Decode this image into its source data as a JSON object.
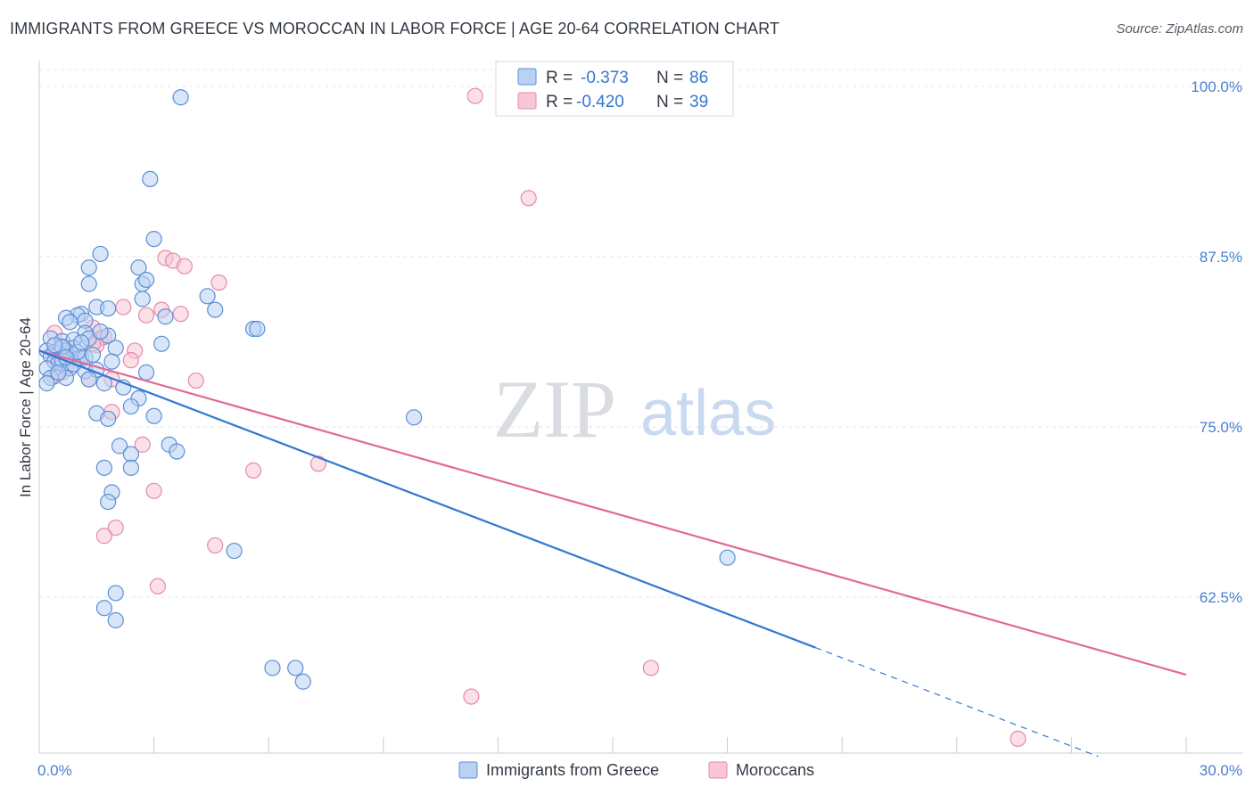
{
  "header": {
    "title": "IMMIGRANTS FROM GREECE VS MOROCCAN IN LABOR FORCE | AGE 20-64 CORRELATION CHART",
    "source": "Source: ZipAtlas.com"
  },
  "watermark": {
    "zip": "ZIP",
    "atlas": "atlas"
  },
  "colors": {
    "greece": "#5b8fd8",
    "greece_fill": "#b9d2f3",
    "greece_line": "#3477d1",
    "morocco": "#e58aa8",
    "morocco_fill": "#f8c6d6",
    "morocco_line": "#e06a95",
    "tick_blue": "#4a7fd0",
    "grid": "#e3e6ea"
  },
  "legend": {
    "rows": [
      {
        "r_label": "R =",
        "r_value": "-0.373",
        "n_label": "N =",
        "n_value": "86"
      },
      {
        "r_label": "R =",
        "r_value": "-0.420",
        "n_label": "N =",
        "n_value": "39"
      }
    ]
  },
  "chart_data": {
    "type": "scatter",
    "title": "IMMIGRANTS FROM GREECE VS MOROCCAN IN LABOR FORCE | AGE 20-64 CORRELATION CHART",
    "xlabel": "",
    "ylabel": "In Labor Force | Age 20-64",
    "xlim": [
      0,
      30
    ],
    "ylim": [
      50,
      102
    ],
    "x_tick_labels": [
      "0.0%",
      "30.0%"
    ],
    "y_ticks": [
      62.5,
      75.0,
      87.5,
      100.0
    ],
    "y_tick_labels": [
      "62.5%",
      "75.0%",
      "87.5%",
      "100.0%"
    ],
    "legend_labels": [
      "Immigrants from Greece",
      "Moroccans"
    ],
    "series": [
      {
        "name": "Immigrants from Greece",
        "r": -0.373,
        "n": 86,
        "trend": {
          "x0": 0,
          "y0": 80.6,
          "x1": 20.3,
          "y1": 58.8,
          "dash_x1": 27.7,
          "dash_y1": 50.8
        },
        "points": [
          [
            3.7,
            99.2
          ],
          [
            2.9,
            93.2
          ],
          [
            3.0,
            88.8
          ],
          [
            1.6,
            87.7
          ],
          [
            1.3,
            86.7
          ],
          [
            2.6,
            86.7
          ],
          [
            1.3,
            85.5
          ],
          [
            2.7,
            85.5
          ],
          [
            2.8,
            85.8
          ],
          [
            2.7,
            84.4
          ],
          [
            4.4,
            84.6
          ],
          [
            1.5,
            83.8
          ],
          [
            1.8,
            83.7
          ],
          [
            4.6,
            83.6
          ],
          [
            3.3,
            83.1
          ],
          [
            1.1,
            83.3
          ],
          [
            1.0,
            83.2
          ],
          [
            0.7,
            83.0
          ],
          [
            0.8,
            82.7
          ],
          [
            1.2,
            82.8
          ],
          [
            5.6,
            82.2
          ],
          [
            5.7,
            82.2
          ],
          [
            1.2,
            81.9
          ],
          [
            1.8,
            81.7
          ],
          [
            1.3,
            81.5
          ],
          [
            0.3,
            81.5
          ],
          [
            0.6,
            81.3
          ],
          [
            0.9,
            81.4
          ],
          [
            3.2,
            81.1
          ],
          [
            0.6,
            80.8
          ],
          [
            0.9,
            80.8
          ],
          [
            0.7,
            80.6
          ],
          [
            0.2,
            80.6
          ],
          [
            0.4,
            80.5
          ],
          [
            0.5,
            80.4
          ],
          [
            0.3,
            80.2
          ],
          [
            1.0,
            80.0
          ],
          [
            1.1,
            80.0
          ],
          [
            1.2,
            80.1
          ],
          [
            0.4,
            79.8
          ],
          [
            0.5,
            79.7
          ],
          [
            0.6,
            79.9
          ],
          [
            0.2,
            79.3
          ],
          [
            0.8,
            79.3
          ],
          [
            1.2,
            79.1
          ],
          [
            1.5,
            79.2
          ],
          [
            2.8,
            79.0
          ],
          [
            0.3,
            78.6
          ],
          [
            0.7,
            78.6
          ],
          [
            1.3,
            78.5
          ],
          [
            0.2,
            78.2
          ],
          [
            1.7,
            78.2
          ],
          [
            2.2,
            77.9
          ],
          [
            2.6,
            77.1
          ],
          [
            2.4,
            76.5
          ],
          [
            1.5,
            76.0
          ],
          [
            3.0,
            75.8
          ],
          [
            1.8,
            75.6
          ],
          [
            9.8,
            75.7
          ],
          [
            2.1,
            73.6
          ],
          [
            3.4,
            73.7
          ],
          [
            3.6,
            73.2
          ],
          [
            2.4,
            73.0
          ],
          [
            1.7,
            72.0
          ],
          [
            2.4,
            72.0
          ],
          [
            1.9,
            70.2
          ],
          [
            1.8,
            69.5
          ],
          [
            5.1,
            65.9
          ],
          [
            18.0,
            65.4
          ],
          [
            2.0,
            62.8
          ],
          [
            1.7,
            61.7
          ],
          [
            2.0,
            60.8
          ],
          [
            6.1,
            57.3
          ],
          [
            6.7,
            57.3
          ],
          [
            6.9,
            56.3
          ],
          [
            0.6,
            80.9
          ],
          [
            1.4,
            80.3
          ],
          [
            0.9,
            79.6
          ],
          [
            2.0,
            80.8
          ],
          [
            0.4,
            81.0
          ],
          [
            1.0,
            80.5
          ],
          [
            1.6,
            82.0
          ],
          [
            0.5,
            79.0
          ],
          [
            1.1,
            81.2
          ],
          [
            0.7,
            80.1
          ],
          [
            1.9,
            79.8
          ]
        ]
      },
      {
        "name": "Moroccans",
        "r": -0.42,
        "n": 39,
        "trend": {
          "x0": 0,
          "y0": 80.6,
          "x1": 30.0,
          "y1": 56.8
        },
        "points": [
          [
            11.4,
            99.3
          ],
          [
            12.8,
            91.8
          ],
          [
            3.3,
            87.4
          ],
          [
            3.5,
            87.2
          ],
          [
            3.8,
            86.8
          ],
          [
            4.7,
            85.6
          ],
          [
            2.2,
            83.8
          ],
          [
            3.2,
            83.6
          ],
          [
            3.7,
            83.3
          ],
          [
            2.8,
            83.2
          ],
          [
            1.4,
            82.3
          ],
          [
            0.4,
            81.9
          ],
          [
            1.6,
            81.5
          ],
          [
            1.7,
            81.6
          ],
          [
            1.5,
            81.0
          ],
          [
            1.4,
            81.1
          ],
          [
            2.5,
            80.6
          ],
          [
            0.6,
            80.5
          ],
          [
            1.1,
            80.2
          ],
          [
            2.4,
            79.9
          ],
          [
            0.7,
            79.3
          ],
          [
            0.6,
            79.0
          ],
          [
            0.4,
            78.7
          ],
          [
            1.3,
            78.5
          ],
          [
            4.1,
            78.4
          ],
          [
            1.9,
            78.5
          ],
          [
            1.9,
            76.1
          ],
          [
            2.7,
            73.7
          ],
          [
            7.3,
            72.3
          ],
          [
            5.6,
            71.8
          ],
          [
            3.0,
            70.3
          ],
          [
            2.0,
            67.6
          ],
          [
            1.7,
            67.0
          ],
          [
            4.6,
            66.3
          ],
          [
            3.1,
            63.3
          ],
          [
            16.0,
            57.3
          ],
          [
            11.3,
            55.2
          ],
          [
            25.6,
            52.1
          ],
          [
            0.8,
            80.0
          ]
        ]
      }
    ]
  }
}
